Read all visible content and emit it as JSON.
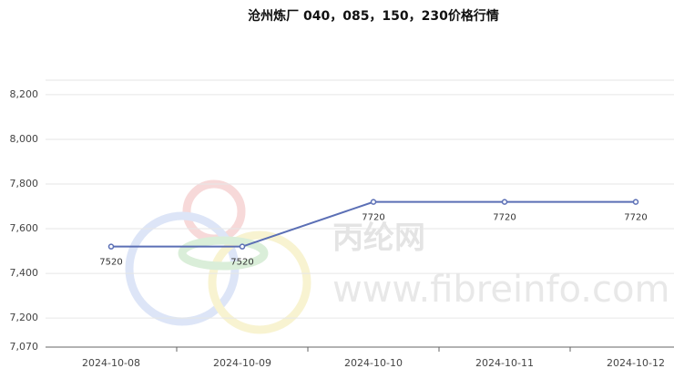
{
  "chart_data": {
    "type": "line",
    "title": "沧州炼厂 040，085，150，230价格行情",
    "watermark": [
      "丙纶网",
      "www.fibreinfo.com"
    ],
    "categories": [
      "2024-10-08",
      "2024-10-09",
      "2024-10-10",
      "2024-10-11",
      "2024-10-12"
    ],
    "series": [
      {
        "name": "沧州炼厂 040，085，150，230",
        "color": "#5b6fb5",
        "values": [
          7520,
          7520,
          7720,
          7720,
          7720
        ]
      }
    ],
    "ylim": [
      7070,
      8265
    ],
    "yticks": [
      {
        "value": 7070,
        "label": "7,070"
      },
      {
        "value": 7200,
        "label": "7,200"
      },
      {
        "value": 7400,
        "label": "7,400"
      },
      {
        "value": 7600,
        "label": "7,600"
      },
      {
        "value": 7800,
        "label": "7,800"
      },
      {
        "value": 8000,
        "label": "8,000"
      },
      {
        "value": 8200,
        "label": "8,200"
      }
    ],
    "grid": true
  }
}
